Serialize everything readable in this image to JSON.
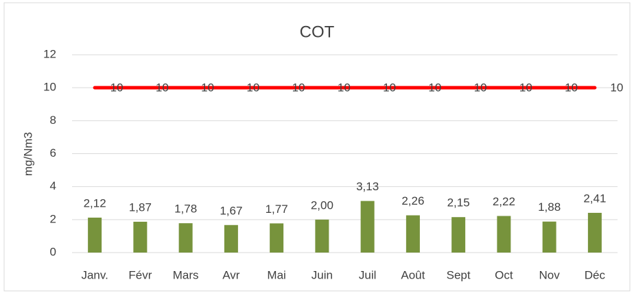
{
  "chart_data": {
    "type": "bar",
    "title": "COT",
    "y_label": "mg/Nm3",
    "categories": [
      "Janv.",
      "Févr",
      "Mars",
      "Avr",
      "Mai",
      "Juin",
      "Juil",
      "Août",
      "Sept",
      "Oct",
      "Nov",
      "Déc"
    ],
    "series": [
      {
        "type": "bar",
        "color": "#77933c",
        "values": [
          2.12,
          1.87,
          1.78,
          1.67,
          1.77,
          2.0,
          3.13,
          2.26,
          2.15,
          2.22,
          1.88,
          2.41
        ],
        "value_labels": [
          "2,12",
          "1,87",
          "1,78",
          "1,67",
          "1,77",
          "2,00",
          "3,13",
          "2,26",
          "2,15",
          "2,22",
          "1,88",
          "2,41"
        ]
      },
      {
        "type": "line",
        "color": "#ff0000",
        "values": [
          10,
          10,
          10,
          10,
          10,
          10,
          10,
          10,
          10,
          10,
          10,
          10
        ]
      }
    ],
    "ylim": [
      0,
      12
    ],
    "yticks": [
      0,
      2,
      4,
      6,
      8,
      10,
      12
    ],
    "grid": true
  }
}
